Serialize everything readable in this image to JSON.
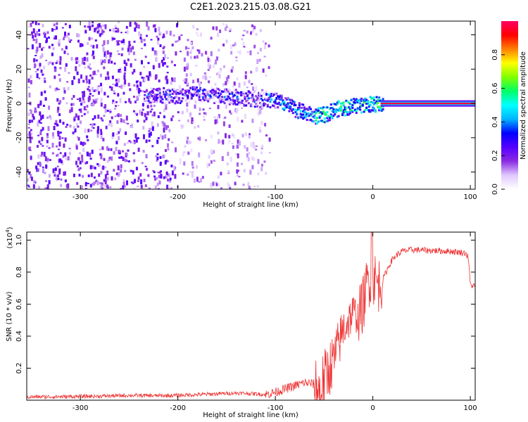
{
  "title": "C2E1.2023.215.03.08.G21",
  "chart_data": [
    {
      "type": "heatmap",
      "xlabel": "Height of straight line (km)",
      "ylabel": "Frequency (Hz)",
      "xlim": [
        -355,
        105
      ],
      "ylim": [
        -50,
        48
      ],
      "xticks": [
        -300,
        -200,
        -100,
        0,
        100
      ],
      "yticks": [
        -40,
        -20,
        0,
        20,
        40
      ],
      "grid": false,
      "colorbar": {
        "label": "Normalized spectral amplitude",
        "range": [
          0,
          1
        ],
        "ticks": [
          "0.0",
          "0.2",
          "0.4",
          "0.6",
          "0.8"
        ],
        "colors": [
          "#ffffff",
          "#e0c8ff",
          "#8a2be2",
          "#5500ff",
          "#0000ff",
          "#00b4ff",
          "#00ffff",
          "#00ff66",
          "#80ff00",
          "#ffff00",
          "#ff8000",
          "#ff0000",
          "#ff0066"
        ]
      },
      "ridge": {
        "x": [
          -230,
          -200,
          -180,
          -160,
          -140,
          -120,
          -100,
          -90,
          -80,
          -70,
          -60,
          -50,
          -40,
          -30,
          -20,
          -10,
          0,
          10,
          105
        ],
        "y": [
          5,
          5,
          6,
          5,
          4,
          3,
          2,
          0,
          -3,
          -5,
          -7,
          -6,
          -3,
          -2,
          -1,
          0,
          0,
          0,
          0
        ]
      }
    },
    {
      "type": "line",
      "xlabel": "Height of straight line (km)",
      "ylabel": "SNR (10 * v/v)",
      "yscale_label": "(x10",
      "yscale_exponent": "4",
      "yscale_suffix": ")",
      "xlim": [
        -355,
        105
      ],
      "ylim": [
        0,
        1.05
      ],
      "xticks": [
        -300,
        -200,
        -100,
        0,
        100
      ],
      "yticks": [
        "0.2",
        "0.4",
        "0.6",
        "0.8",
        "1.0"
      ],
      "line_color": "#ee3333",
      "series": [
        {
          "x": [
            -355,
            -320,
            -280,
            -250,
            -220,
            -200,
            -180,
            -160,
            -140,
            -120,
            -110,
            -100,
            -90,
            -80,
            -70,
            -60,
            -55,
            -50,
            -45,
            -40,
            -35,
            -30,
            -25,
            -20,
            -15,
            -10,
            -5,
            0,
            5,
            10,
            15,
            20,
            25,
            30,
            40,
            60,
            80,
            95,
            98,
            100,
            105
          ],
          "y": [
            0.02,
            0.022,
            0.025,
            0.03,
            0.028,
            0.03,
            0.035,
            0.04,
            0.045,
            0.04,
            0.035,
            0.05,
            0.07,
            0.09,
            0.11,
            0.1,
            0.05,
            0.12,
            0.2,
            0.25,
            0.35,
            0.45,
            0.5,
            0.55,
            0.52,
            0.6,
            0.75,
            0.78,
            0.72,
            0.75,
            0.82,
            0.88,
            0.91,
            0.93,
            0.94,
            0.935,
            0.93,
            0.92,
            0.89,
            0.72,
            0.71
          ]
        }
      ]
    }
  ]
}
